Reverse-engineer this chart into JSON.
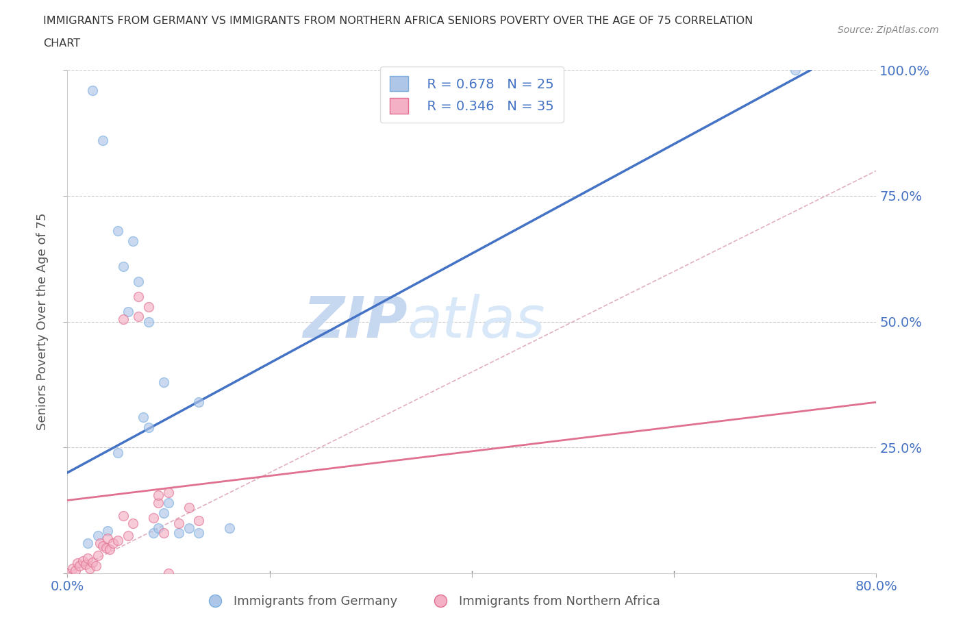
{
  "title_line1": "IMMIGRANTS FROM GERMANY VS IMMIGRANTS FROM NORTHERN AFRICA SENIORS POVERTY OVER THE AGE OF 75 CORRELATION",
  "title_line2": "CHART",
  "source_text": "Source: ZipAtlas.com",
  "ylabel": "Seniors Poverty Over the Age of 75",
  "xmin": 0.0,
  "xmax": 0.8,
  "ymin": 0.0,
  "ymax": 1.0,
  "xticks": [
    0.0,
    0.2,
    0.4,
    0.6,
    0.8
  ],
  "yticks": [
    0.0,
    0.25,
    0.5,
    0.75,
    1.0
  ],
  "xtick_labels": [
    "0.0%",
    "",
    "",
    "",
    "80.0%"
  ],
  "ytick_labels_right": [
    "",
    "25.0%",
    "50.0%",
    "75.0%",
    "100.0%"
  ],
  "germany_color": "#aec6e8",
  "germany_edge_color": "#7aafe0",
  "n_africa_color": "#f4b0c4",
  "n_africa_edge_color": "#e07090",
  "blue_line_color": "#4472c4",
  "pink_line_color": "#e07090",
  "ref_line_color": "#c8c8c8",
  "watermark_color": "#d0e4f8",
  "legend_R1": "R = 0.678",
  "legend_N1": "N = 25",
  "legend_R2": "R = 0.346",
  "legend_N2": "N = 35",
  "germany_x": [
    0.02,
    0.03,
    0.04,
    0.055,
    0.065,
    0.07,
    0.075,
    0.08,
    0.085,
    0.09,
    0.095,
    0.1,
    0.11,
    0.12,
    0.13,
    0.16,
    0.025,
    0.035,
    0.05,
    0.08,
    0.06,
    0.095,
    0.13,
    0.05,
    0.72
  ],
  "germany_y": [
    0.06,
    0.075,
    0.085,
    0.61,
    0.66,
    0.58,
    0.31,
    0.29,
    0.08,
    0.09,
    0.12,
    0.14,
    0.08,
    0.09,
    0.08,
    0.09,
    0.96,
    0.86,
    0.68,
    0.5,
    0.52,
    0.38,
    0.34,
    0.24,
    1.0
  ],
  "n_africa_x": [
    0.0,
    0.005,
    0.008,
    0.01,
    0.012,
    0.015,
    0.018,
    0.02,
    0.022,
    0.025,
    0.028,
    0.03,
    0.032,
    0.035,
    0.038,
    0.04,
    0.042,
    0.045,
    0.05,
    0.055,
    0.06,
    0.065,
    0.07,
    0.08,
    0.085,
    0.09,
    0.095,
    0.1,
    0.11,
    0.12,
    0.13,
    0.055,
    0.07,
    0.09,
    0.1
  ],
  "n_africa_y": [
    0.0,
    0.01,
    0.005,
    0.02,
    0.015,
    0.025,
    0.018,
    0.03,
    0.01,
    0.022,
    0.015,
    0.035,
    0.06,
    0.055,
    0.05,
    0.07,
    0.048,
    0.06,
    0.065,
    0.115,
    0.075,
    0.1,
    0.55,
    0.53,
    0.11,
    0.14,
    0.08,
    0.16,
    0.1,
    0.13,
    0.105,
    0.505,
    0.51,
    0.155,
    0.0
  ],
  "blue_line_x": [
    0.0,
    0.735
  ],
  "blue_line_y": [
    0.2,
    1.0
  ],
  "pink_line_x": [
    0.0,
    0.8
  ],
  "pink_line_y": [
    0.145,
    0.34
  ],
  "ref_line_x": [
    0.0,
    0.8
  ],
  "ref_line_y": [
    0.0,
    0.8
  ],
  "marker_size": 100,
  "marker_alpha": 0.65,
  "background_color": "#ffffff",
  "grid_color": "#cccccc",
  "title_color": "#333333",
  "tick_color": "#4472c4"
}
